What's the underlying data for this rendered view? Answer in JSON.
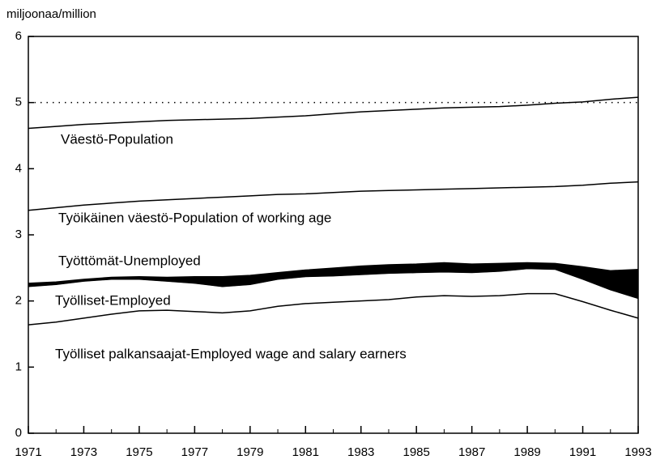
{
  "chart_data": {
    "type": "line",
    "y_label": "miljoonaa/million",
    "x": [
      1971,
      1972,
      1973,
      1974,
      1975,
      1976,
      1977,
      1978,
      1979,
      1980,
      1981,
      1982,
      1983,
      1984,
      1985,
      1986,
      1987,
      1988,
      1989,
      1990,
      1991,
      1992,
      1993
    ],
    "xlim": [
      1971,
      1993
    ],
    "xticks": [
      1971,
      1973,
      1975,
      1977,
      1979,
      1981,
      1983,
      1985,
      1987,
      1989,
      1991,
      1993
    ],
    "ylim": [
      0,
      6
    ],
    "yticks": [
      0,
      1,
      2,
      3,
      4,
      5,
      6
    ],
    "reference_line": 5,
    "series": [
      {
        "name": "Väestö-Population",
        "color": "#000000",
        "values": [
          4.61,
          4.64,
          4.67,
          4.69,
          4.71,
          4.73,
          4.74,
          4.75,
          4.76,
          4.78,
          4.8,
          4.83,
          4.86,
          4.88,
          4.9,
          4.92,
          4.93,
          4.94,
          4.96,
          4.99,
          5.01,
          5.05,
          5.08
        ]
      },
      {
        "name": "Työikäinen väestö-Population of working age",
        "color": "#000000",
        "values": [
          3.37,
          3.41,
          3.45,
          3.48,
          3.51,
          3.53,
          3.55,
          3.57,
          3.59,
          3.61,
          3.62,
          3.64,
          3.66,
          3.67,
          3.68,
          3.69,
          3.7,
          3.71,
          3.72,
          3.73,
          3.75,
          3.78,
          3.8
        ]
      },
      {
        "name": "Työttömät-Unemployed",
        "color": "#000000",
        "stacked_on": "Työlliset-Employed",
        "values": [
          0.05,
          0.04,
          0.03,
          0.03,
          0.04,
          0.06,
          0.1,
          0.15,
          0.14,
          0.1,
          0.1,
          0.12,
          0.13,
          0.13,
          0.13,
          0.14,
          0.13,
          0.12,
          0.09,
          0.09,
          0.19,
          0.29,
          0.44
        ]
      },
      {
        "name": "Työlliset-Employed",
        "color": "#000000",
        "values": [
          2.22,
          2.25,
          2.3,
          2.33,
          2.33,
          2.3,
          2.27,
          2.22,
          2.25,
          2.33,
          2.37,
          2.38,
          2.4,
          2.42,
          2.43,
          2.44,
          2.43,
          2.45,
          2.49,
          2.48,
          2.33,
          2.17,
          2.04
        ]
      },
      {
        "name": "Työlliset palkansaajat-Employed wage and salary earners",
        "color": "#000000",
        "values": [
          1.64,
          1.68,
          1.74,
          1.8,
          1.85,
          1.86,
          1.84,
          1.82,
          1.85,
          1.92,
          1.96,
          1.98,
          2.0,
          2.02,
          2.06,
          2.08,
          2.07,
          2.08,
          2.11,
          2.11,
          1.99,
          1.86,
          1.74
        ]
      }
    ]
  }
}
